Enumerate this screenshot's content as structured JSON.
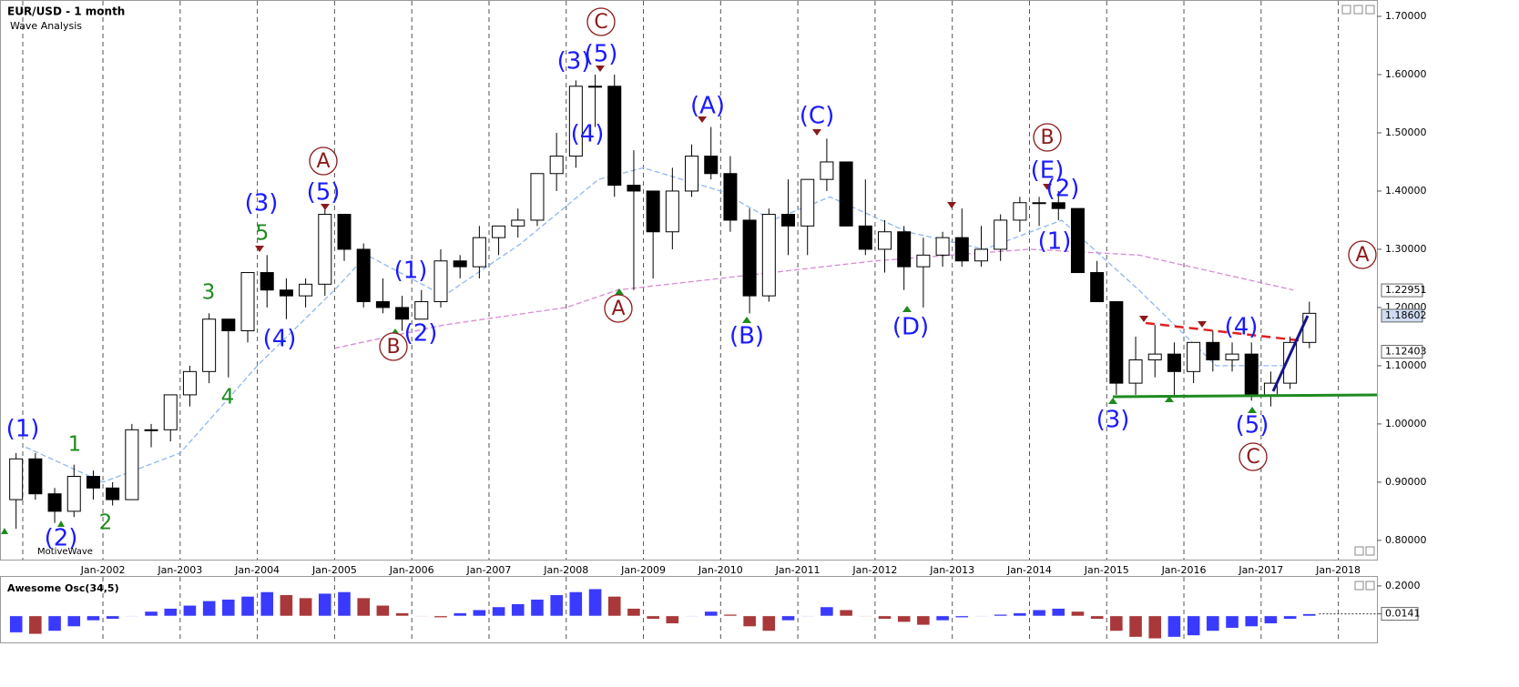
{
  "chart_data": [
    {
      "type": "candlestick",
      "title": "EUR/USD - 1 month",
      "subtitle": "Wave Analysis",
      "watermark": "MotiveWave",
      "x": [
        "2000-10",
        "2001-01",
        "2001-04",
        "2001-07",
        "2001-10",
        "2002-01",
        "2002-04",
        "2002-07",
        "2002-10",
        "2003-01",
        "2003-04",
        "2003-07",
        "2003-10",
        "2004-01",
        "2004-04",
        "2004-07",
        "2004-10",
        "2005-01",
        "2005-04",
        "2005-07",
        "2005-10",
        "2006-01",
        "2006-04",
        "2006-07",
        "2006-10",
        "2007-01",
        "2007-04",
        "2007-07",
        "2007-10",
        "2008-01",
        "2008-04",
        "2008-07",
        "2008-10",
        "2009-01",
        "2009-04",
        "2009-07",
        "2009-10",
        "2010-01",
        "2010-04",
        "2010-07",
        "2010-10",
        "2011-01",
        "2011-04",
        "2011-07",
        "2011-10",
        "2012-01",
        "2012-04",
        "2012-07",
        "2012-10",
        "2013-01",
        "2013-04",
        "2013-07",
        "2013-10",
        "2014-01",
        "2014-04",
        "2014-07",
        "2014-10",
        "2015-01",
        "2015-04",
        "2015-07",
        "2015-10",
        "2016-01",
        "2016-04",
        "2016-07",
        "2016-10",
        "2017-01",
        "2017-04",
        "2017-07"
      ],
      "open": [
        0.87,
        0.94,
        0.88,
        0.85,
        0.91,
        0.89,
        0.87,
        0.99,
        0.99,
        1.05,
        1.09,
        1.18,
        1.16,
        1.26,
        1.23,
        1.22,
        1.24,
        1.36,
        1.3,
        1.21,
        1.2,
        1.18,
        1.21,
        1.28,
        1.27,
        1.32,
        1.34,
        1.35,
        1.43,
        1.46,
        1.58,
        1.58,
        1.41,
        1.4,
        1.33,
        1.4,
        1.46,
        1.43,
        1.35,
        1.22,
        1.36,
        1.34,
        1.42,
        1.45,
        1.34,
        1.3,
        1.33,
        1.27,
        1.29,
        1.32,
        1.28,
        1.3,
        1.35,
        1.38,
        1.38,
        1.37,
        1.26,
        1.21,
        1.07,
        1.11,
        1.12,
        1.09,
        1.14,
        1.11,
        1.12,
        1.05,
        1.07,
        1.14
      ],
      "high": [
        0.95,
        0.95,
        0.89,
        0.93,
        0.92,
        0.9,
        1.0,
        1.0,
        1.05,
        1.1,
        1.19,
        1.18,
        1.26,
        1.29,
        1.25,
        1.25,
        1.37,
        1.36,
        1.31,
        1.25,
        1.22,
        1.23,
        1.3,
        1.29,
        1.34,
        1.34,
        1.37,
        1.43,
        1.5,
        1.59,
        1.6,
        1.6,
        1.47,
        1.4,
        1.44,
        1.48,
        1.51,
        1.46,
        1.37,
        1.37,
        1.42,
        1.42,
        1.49,
        1.45,
        1.42,
        1.35,
        1.34,
        1.32,
        1.33,
        1.37,
        1.34,
        1.36,
        1.39,
        1.39,
        1.4,
        1.37,
        1.28,
        1.21,
        1.15,
        1.17,
        1.14,
        1.14,
        1.16,
        1.14,
        1.14,
        1.09,
        1.15,
        1.21
      ],
      "low": [
        0.82,
        0.87,
        0.83,
        0.84,
        0.87,
        0.86,
        0.87,
        0.96,
        0.97,
        1.03,
        1.07,
        1.08,
        1.14,
        1.2,
        1.18,
        1.2,
        1.22,
        1.28,
        1.2,
        1.19,
        1.16,
        1.18,
        1.2,
        1.25,
        1.25,
        1.29,
        1.32,
        1.34,
        1.4,
        1.44,
        1.51,
        1.39,
        1.23,
        1.25,
        1.3,
        1.39,
        1.42,
        1.33,
        1.19,
        1.21,
        1.29,
        1.29,
        1.4,
        1.34,
        1.29,
        1.26,
        1.23,
        1.2,
        1.27,
        1.27,
        1.27,
        1.28,
        1.33,
        1.34,
        1.35,
        1.26,
        1.21,
        1.05,
        1.05,
        1.08,
        1.05,
        1.07,
        1.09,
        1.09,
        1.04,
        1.03,
        1.06,
        1.13
      ],
      "close": [
        0.94,
        0.88,
        0.85,
        0.91,
        0.89,
        0.87,
        0.99,
        0.99,
        1.05,
        1.09,
        1.18,
        1.16,
        1.26,
        1.23,
        1.22,
        1.24,
        1.36,
        1.3,
        1.21,
        1.2,
        1.18,
        1.21,
        1.28,
        1.27,
        1.32,
        1.34,
        1.35,
        1.43,
        1.46,
        1.58,
        1.58,
        1.41,
        1.4,
        1.33,
        1.4,
        1.46,
        1.43,
        1.35,
        1.22,
        1.36,
        1.34,
        1.42,
        1.45,
        1.34,
        1.3,
        1.33,
        1.27,
        1.29,
        1.32,
        1.28,
        1.3,
        1.35,
        1.38,
        1.38,
        1.37,
        1.26,
        1.21,
        1.07,
        1.11,
        1.12,
        1.09,
        1.14,
        1.11,
        1.12,
        1.05,
        1.07,
        1.14,
        1.19
      ],
      "up_color": "#ffffff",
      "down_color": "#000000",
      "xlim": [
        "2000-09",
        "2018-07"
      ],
      "ylim": [
        0.767,
        1.725
      ],
      "xticks": [
        {
          "value": "2002-01",
          "label": "Jan-2002"
        },
        {
          "value": "2003-01",
          "label": "Jan-2003"
        },
        {
          "value": "2004-01",
          "label": "Jan-2004"
        },
        {
          "value": "2005-01",
          "label": "Jan-2005"
        },
        {
          "value": "2006-01",
          "label": "Jan-2006"
        },
        {
          "value": "2007-01",
          "label": "Jan-2007"
        },
        {
          "value": "2008-01",
          "label": "Jan-2008"
        },
        {
          "value": "2009-01",
          "label": "Jan-2009"
        },
        {
          "value": "2010-01",
          "label": "Jan-2010"
        },
        {
          "value": "2011-01",
          "label": "Jan-2011"
        },
        {
          "value": "2012-01",
          "label": "Jan-2012"
        },
        {
          "value": "2013-01",
          "label": "Jan-2013"
        },
        {
          "value": "2014-01",
          "label": "Jan-2014"
        },
        {
          "value": "2015-01",
          "label": "Jan-2015"
        },
        {
          "value": "2016-01",
          "label": "Jan-2016"
        },
        {
          "value": "2017-01",
          "label": "Jan-2017"
        },
        {
          "value": "2018-01",
          "label": "Jan-2018"
        }
      ],
      "yticks": [
        {
          "value": 0.8,
          "label": "0.80000"
        },
        {
          "value": 0.9,
          "label": "0.90000"
        },
        {
          "value": 1.0,
          "label": "1.00000"
        },
        {
          "value": 1.1,
          "label": "1.10000"
        },
        {
          "value": 1.2,
          "label": "1.20000"
        },
        {
          "value": 1.3,
          "label": "1.30000"
        },
        {
          "value": 1.4,
          "label": "1.40000"
        },
        {
          "value": 1.5,
          "label": "1.50000"
        },
        {
          "value": 1.6,
          "label": "1.60000"
        },
        {
          "value": 1.7,
          "label": "1.70000"
        }
      ],
      "grid": "x",
      "price_labels": [
        1.22951,
        1.18602,
        1.12403
      ],
      "overlays": [
        {
          "color": "#8fb8ee",
          "x": [
            "2001-01",
            "2002-01",
            "2003-01",
            "2004-01",
            "2005-01",
            "2005-06",
            "2006-06",
            "2007-06",
            "2008-06",
            "2009-01",
            "2010-01",
            "2010-09",
            "2011-06",
            "2012-06",
            "2013-06",
            "2014-06",
            "2015-06",
            "2016-06",
            "2017-06"
          ],
          "values": [
            0.96,
            0.9,
            0.95,
            1.1,
            1.23,
            1.29,
            1.22,
            1.31,
            1.42,
            1.44,
            1.4,
            1.35,
            1.39,
            1.33,
            1.3,
            1.35,
            1.23,
            1.1,
            1.1
          ]
        },
        {
          "color": "#d98ad9",
          "x": [
            "2005-01",
            "2006-06",
            "2008-01",
            "2008-09",
            "2010-01",
            "2012-01",
            "2014-01",
            "2015-06",
            "2017-06"
          ],
          "values": [
            1.13,
            1.17,
            1.2,
            1.23,
            1.25,
            1.28,
            1.3,
            1.29,
            1.23
          ]
        }
      ],
      "annotations": [
        {
          "text": "(1)",
          "style": "blue"
        },
        {
          "text": "(2)",
          "style": "blue"
        },
        {
          "text": "(3)",
          "style": "blue"
        },
        {
          "text": "(5)",
          "style": "blue"
        },
        {
          "text": "(4)",
          "style": "blue"
        },
        {
          "text": "(1)",
          "style": "blue"
        },
        {
          "text": "(2)",
          "style": "blue"
        },
        {
          "text": "(3)",
          "style": "blue"
        },
        {
          "text": "(5)",
          "style": "blue"
        },
        {
          "text": "(4)",
          "style": "blue"
        },
        {
          "text": "(A)",
          "style": "blue"
        },
        {
          "text": "(B)",
          "style": "blue"
        },
        {
          "text": "(C)",
          "style": "blue"
        },
        {
          "text": "(D)",
          "style": "blue"
        },
        {
          "text": "(E)",
          "style": "blue"
        },
        {
          "text": "(2)",
          "style": "blue"
        },
        {
          "text": "(1)",
          "style": "blue"
        },
        {
          "text": "(3)",
          "style": "blue"
        },
        {
          "text": "(5)",
          "style": "blue"
        },
        {
          "text": "(4)",
          "style": "blue"
        },
        {
          "text": "1",
          "style": "green"
        },
        {
          "text": "2",
          "style": "green"
        },
        {
          "text": "3",
          "style": "green"
        },
        {
          "text": "4",
          "style": "green"
        },
        {
          "text": "5",
          "style": "green"
        },
        {
          "text": "C",
          "style": "circle"
        },
        {
          "text": "A",
          "style": "circle"
        },
        {
          "text": "B",
          "style": "circle"
        },
        {
          "text": "A",
          "style": "circle"
        },
        {
          "text": "B",
          "style": "circle"
        },
        {
          "text": "C",
          "style": "circle"
        },
        {
          "text": "A",
          "style": "circle"
        }
      ]
    },
    {
      "type": "bar",
      "title": "Awesome Osc(34,5)",
      "x": [
        "2000-10",
        "2001-01",
        "2001-04",
        "2001-07",
        "2001-10",
        "2002-01",
        "2002-04",
        "2002-07",
        "2002-10",
        "2003-01",
        "2003-04",
        "2003-07",
        "2003-10",
        "2004-01",
        "2004-04",
        "2004-07",
        "2004-10",
        "2005-01",
        "2005-04",
        "2005-07",
        "2005-10",
        "2006-01",
        "2006-04",
        "2006-07",
        "2006-10",
        "2007-01",
        "2007-04",
        "2007-07",
        "2007-10",
        "2008-01",
        "2008-04",
        "2008-07",
        "2008-10",
        "2009-01",
        "2009-04",
        "2009-07",
        "2009-10",
        "2010-01",
        "2010-04",
        "2010-07",
        "2010-10",
        "2011-01",
        "2011-04",
        "2011-07",
        "2011-10",
        "2012-01",
        "2012-04",
        "2012-07",
        "2012-10",
        "2013-01",
        "2013-04",
        "2013-07",
        "2013-10",
        "2014-01",
        "2014-04",
        "2014-07",
        "2014-10",
        "2015-01",
        "2015-04",
        "2015-07",
        "2015-10",
        "2016-01",
        "2016-04",
        "2016-07",
        "2016-10",
        "2017-01",
        "2017-04",
        "2017-07"
      ],
      "values": [
        -0.11,
        -0.12,
        -0.1,
        -0.07,
        -0.03,
        -0.02,
        0.0,
        0.03,
        0.05,
        0.07,
        0.1,
        0.11,
        0.13,
        0.16,
        0.14,
        0.12,
        0.15,
        0.16,
        0.12,
        0.07,
        0.02,
        0.0,
        -0.01,
        0.02,
        0.04,
        0.06,
        0.08,
        0.11,
        0.14,
        0.16,
        0.18,
        0.13,
        0.05,
        -0.02,
        -0.05,
        0.0,
        0.03,
        0.01,
        -0.07,
        -0.1,
        -0.03,
        0.0,
        0.06,
        0.04,
        0.0,
        -0.02,
        -0.04,
        -0.06,
        -0.03,
        -0.01,
        0.0,
        0.01,
        0.02,
        0.04,
        0.05,
        0.03,
        -0.02,
        -0.1,
        -0.14,
        -0.15,
        -0.14,
        -0.13,
        -0.1,
        -0.08,
        -0.07,
        -0.05,
        -0.02,
        0.0141
      ],
      "up_color": "#3a3aff",
      "down_color": "#a8383a",
      "ylim": [
        -0.17,
        0.248
      ],
      "yticks": [
        {
          "value": 0.2,
          "label": "0.2000"
        },
        0.0141
      ]
    }
  ]
}
